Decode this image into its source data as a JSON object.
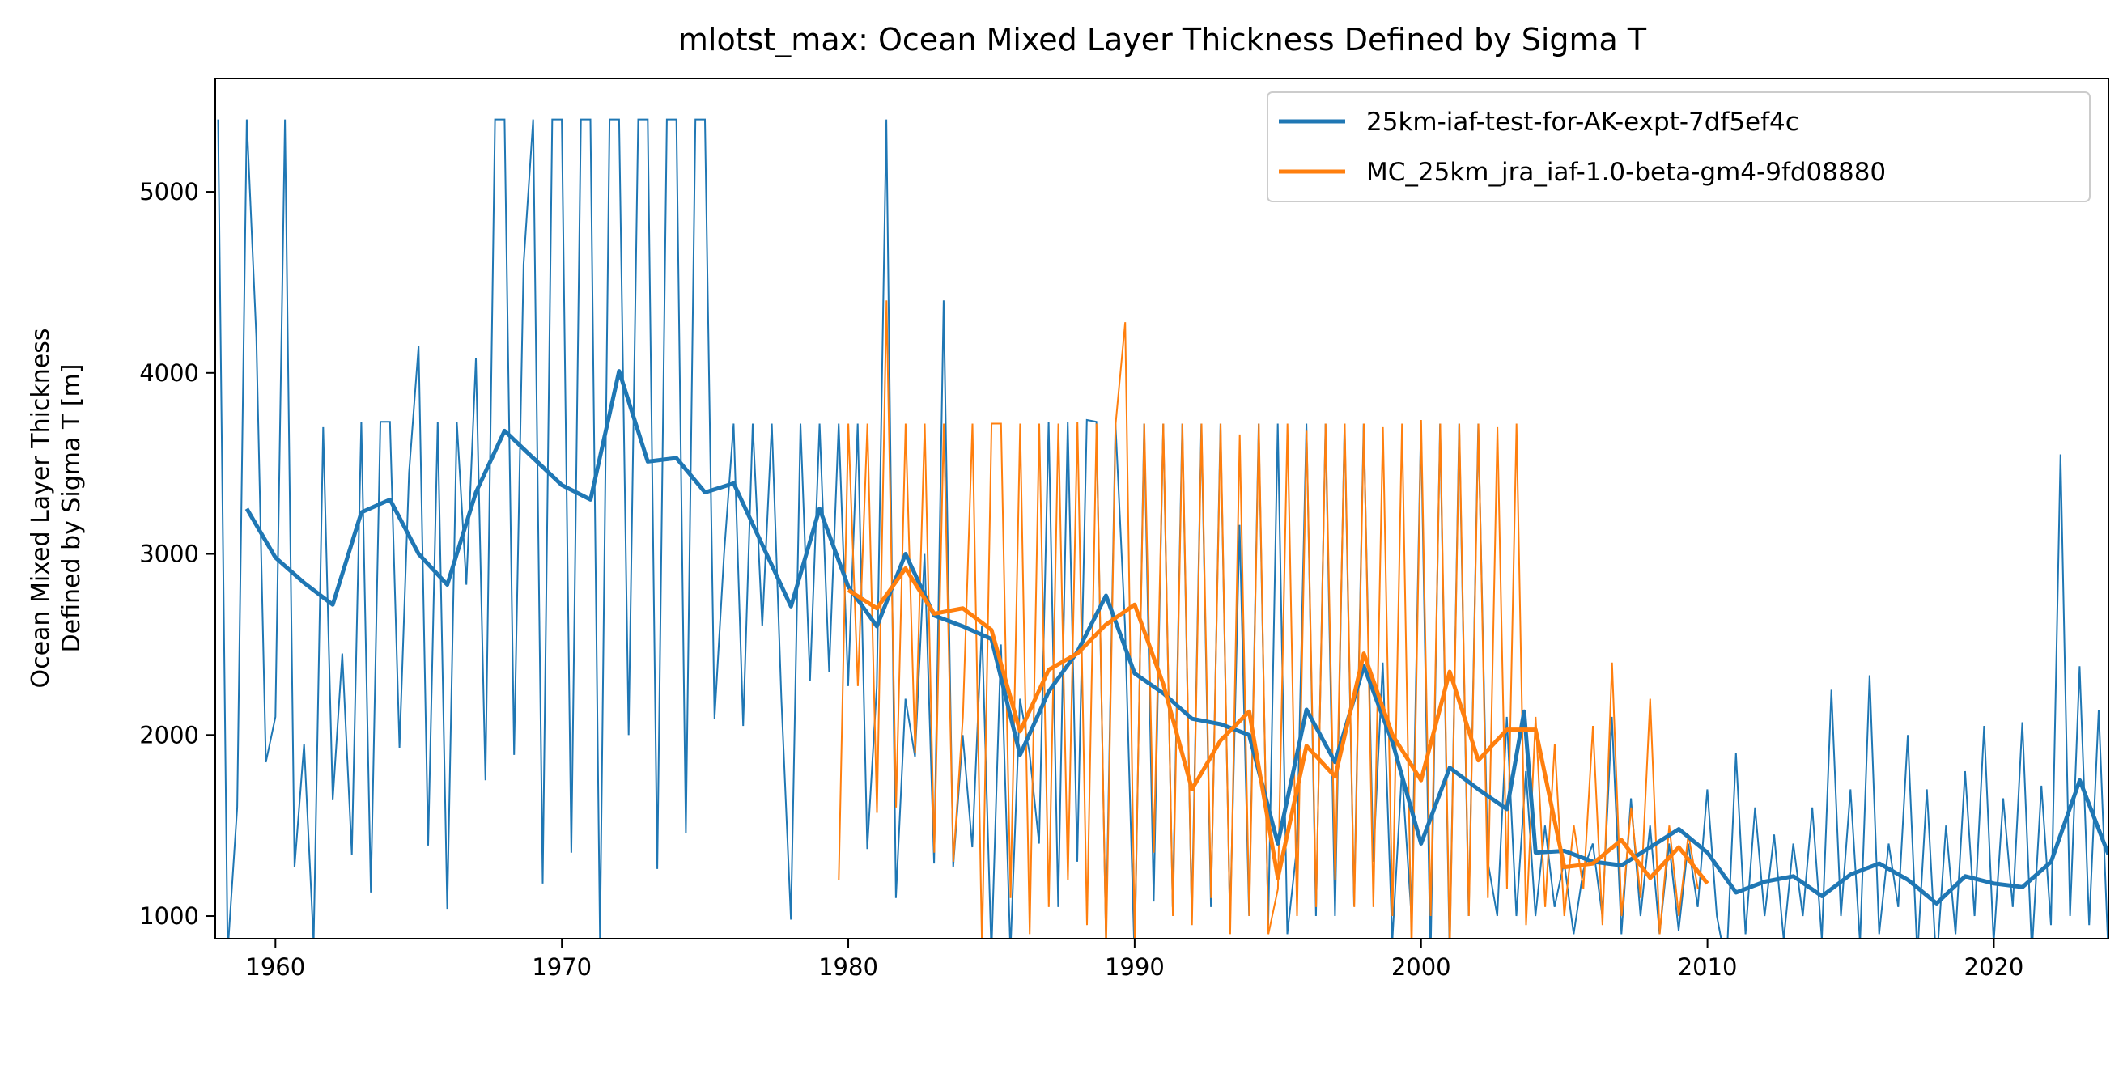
{
  "chart_data": {
    "type": "line",
    "title": "mlotst_max: Ocean Mixed Layer Thickness Defined by Sigma T",
    "xlabel": "",
    "ylabel": [
      "Ocean Mixed Layer Thickness",
      "Defined by Sigma T [m]"
    ],
    "xlim": [
      1957.9,
      2024.0
    ],
    "ylim": [
      875,
      5626
    ],
    "xticks": [
      1960,
      1970,
      1980,
      1990,
      2000,
      2010,
      2020
    ],
    "yticks": [
      1000,
      2000,
      3000,
      4000,
      5000
    ],
    "grid": false,
    "legend_placement": "upper-right",
    "series": [
      {
        "name": "25km-iaf-test-for-AK-expt-7df5ef4c",
        "color": "#1f77b4",
        "thin": {
          "start": 1958.0,
          "step_years": 0.3333,
          "values": [
            5400,
            800,
            1600,
            5400,
            4200,
            1850,
            2100,
            5400,
            1270,
            1950,
            850,
            3700,
            1640,
            2450,
            1340,
            3730,
            1130,
            3730,
            3730,
            1930,
            3450,
            4150,
            1390,
            3730,
            1040,
            3730,
            2830,
            4080,
            1750,
            5400,
            5400,
            1890,
            4600,
            5400,
            1180,
            5400,
            5400,
            1350,
            5400,
            5400,
            860,
            5400,
            5400,
            2000,
            5400,
            5400,
            1260,
            5400,
            5400,
            1460,
            5400,
            5400,
            2090,
            3000,
            3720,
            2050,
            3720,
            2600,
            3720,
            2200,
            980,
            3720,
            2300,
            3720,
            2350,
            3720,
            2270,
            3720,
            1370,
            2270,
            5400,
            1100,
            2200,
            1880,
            3000,
            1290,
            4400,
            1270,
            2000,
            1380,
            2600,
            790,
            2500,
            800,
            2200,
            1900,
            1400,
            3730,
            1050,
            3730,
            1300,
            3740,
            3730,
            880,
            3720,
            2600,
            760,
            3720,
            1080,
            3720,
            1050,
            3720,
            980,
            3720,
            1050,
            3720,
            960,
            3160,
            1000,
            3720,
            950,
            3720,
            900,
            1380,
            3720,
            1000,
            3720,
            1000,
            3720,
            1060,
            3720,
            1300,
            2400,
            860,
            1800,
            1000,
            3720,
            750,
            3720,
            780,
            3720,
            1000,
            3720,
            1300,
            1000,
            2100,
            1000,
            1800,
            1000,
            1500,
            1050,
            1300,
            900,
            1250,
            1400,
            1000,
            2100,
            900,
            1650,
            1000,
            1500,
            900,
            1400,
            920,
            1400,
            1050,
            1700,
            1000,
            720,
            1900,
            900,
            1600,
            1000,
            1450,
            870,
            1400,
            1000,
            1600,
            870,
            2250,
            1000,
            1700,
            850,
            2330,
            900,
            1400,
            1050,
            2000,
            780,
            1700,
            720,
            1500,
            900,
            1800,
            1000,
            2050,
            850,
            1650,
            1050,
            2070,
            800,
            1720,
            950,
            3550,
            1000,
            2380,
            950,
            2140,
            800
          ]
        },
        "annual": {
          "x": [
            1959,
            1960,
            1961,
            1962,
            1963,
            1964,
            1965,
            1966,
            1967,
            1968,
            1969,
            1970,
            1971,
            1972,
            1973,
            1974,
            1975,
            1976,
            1977,
            1978,
            1979,
            1980,
            1981,
            1982,
            1983,
            1984,
            1985,
            1986,
            1987,
            1988,
            1989,
            1990,
            1991,
            1992,
            1993,
            1994,
            1995,
            1996,
            1997,
            1998,
            1999,
            2000,
            2001,
            2002,
            2003,
            2003.6,
            2004,
            2005,
            2006,
            2007,
            2008,
            2009,
            2010,
            2011,
            2012,
            2013,
            2014,
            2015,
            2016,
            2017,
            2018,
            2019,
            2020,
            2021,
            2022,
            2023,
            2024
          ],
          "y": [
            3250,
            2980,
            2840,
            2720,
            3230,
            3300,
            3000,
            2830,
            3340,
            3680,
            3530,
            3380,
            3300,
            4010,
            3510,
            3530,
            3340,
            3390,
            3050,
            2710,
            3250,
            2820,
            2600,
            3000,
            2660,
            2600,
            2530,
            1890,
            2240,
            2460,
            2770,
            2340,
            2230,
            2090,
            2060,
            2000,
            1400,
            2140,
            1850,
            2380,
            1960,
            1400,
            1820,
            1700,
            1590,
            2130,
            1350,
            1360,
            1300,
            1280,
            1380,
            1480,
            1350,
            1130,
            1190,
            1220,
            1110,
            1230,
            1290,
            1200,
            1070,
            1220,
            1180,
            1160,
            1300,
            1750,
            1340
          ]
        }
      },
      {
        "name": "MC_25km_jra_iaf-1.0-beta-gm4-9fd08880",
        "color": "#ff7f0e",
        "thin": {
          "start": 1979.67,
          "step_years": 0.3333,
          "values": [
            1200,
            3720,
            2270,
            3720,
            1570,
            4400,
            1600,
            3720,
            1900,
            3720,
            1350,
            3720,
            1300,
            2100,
            3720,
            820,
            3720,
            3720,
            1100,
            3720,
            900,
            3720,
            1050,
            3720,
            1200,
            3730,
            950,
            3720,
            820,
            3720,
            4280,
            850,
            3720,
            1350,
            3720,
            1000,
            3720,
            950,
            3720,
            1100,
            3720,
            900,
            3660,
            1000,
            3720,
            900,
            1150,
            3720,
            1000,
            3680,
            1050,
            3720,
            1200,
            3720,
            1050,
            3720,
            1050,
            3700,
            1000,
            3720,
            800,
            3740,
            1000,
            3720,
            800,
            3720,
            1000,
            3720,
            1100,
            3700,
            1150,
            3720,
            950,
            2100,
            1050,
            1950,
            1000,
            1500,
            1150,
            2050,
            950,
            2400,
            1000,
            1600,
            1100,
            2200,
            900,
            1500,
            1000,
            1450,
            1150
          ]
        },
        "annual": {
          "x": [
            1980,
            1981,
            1982,
            1983,
            1984,
            1985,
            1986,
            1987,
            1988,
            1989,
            1990,
            1991,
            1992,
            1993,
            1994,
            1995,
            1996,
            1997,
            1998,
            1999,
            2000,
            2001,
            2002,
            2003,
            2004,
            2005,
            2006,
            2007,
            2008,
            2009,
            2010
          ],
          "y": [
            2800,
            2700,
            2920,
            2670,
            2700,
            2580,
            2020,
            2360,
            2450,
            2610,
            2720,
            2280,
            1700,
            1970,
            2130,
            1210,
            1940,
            1770,
            2450,
            2000,
            1750,
            2350,
            1860,
            2030,
            2030,
            1270,
            1290,
            1420,
            1210,
            1380,
            1180
          ]
        }
      }
    ]
  }
}
